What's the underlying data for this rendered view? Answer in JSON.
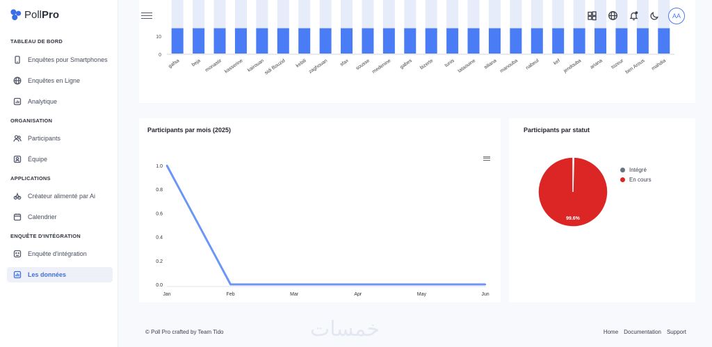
{
  "app": {
    "logo_light": "Poll",
    "logo_bold": "Pro"
  },
  "sidebar": {
    "sections": [
      {
        "title": "TABLEAU DE BORD"
      },
      {
        "title": "ORGANISATION"
      },
      {
        "title": "APPLICATIONS"
      },
      {
        "title": "ENQUÊTE D'INTÉGRATION"
      }
    ],
    "items": [
      {
        "label": "Enquêtes pour Smartphones",
        "icon": "smartphone-icon"
      },
      {
        "label": "Enquêtes en Ligne",
        "icon": "globe-icon"
      },
      {
        "label": "Analytique",
        "icon": "analytics-icon"
      },
      {
        "label": "Participants",
        "icon": "users-icon"
      },
      {
        "label": "Équipe",
        "icon": "team-icon"
      },
      {
        "label": "Créateur alimenté par Ai",
        "icon": "ai-icon"
      },
      {
        "label": "Calendrier",
        "icon": "calendar-icon"
      },
      {
        "label": "Enquête d'intégration",
        "icon": "survey-icon"
      },
      {
        "label": "Les données",
        "icon": "data-icon",
        "active": true
      }
    ]
  },
  "header": {
    "avatar": "AA",
    "icons": [
      "windows-icon",
      "globe-icon",
      "bell-icon",
      "moon-icon"
    ]
  },
  "chart_data": [
    {
      "type": "bar",
      "categories": [
        "gafsa",
        "beja",
        "monastir",
        "kasserine",
        "kairouan",
        "sidi Bouzid",
        "kebili",
        "zaghouan",
        "sfax",
        "sousse",
        "medenine",
        "gabes",
        "bizerte",
        "tunis",
        "tataouine",
        "siliana",
        "manouba",
        "nabeul",
        "kef",
        "jendouba",
        "ariana",
        "tozeur",
        "ben Arous",
        "mahdia"
      ],
      "values": [
        14,
        14,
        14,
        14,
        14,
        14,
        14,
        14,
        14,
        14,
        14,
        14,
        14,
        14,
        14,
        14,
        14,
        14,
        14,
        14,
        14,
        14,
        14,
        14
      ],
      "ytick_labels": [
        "0",
        "10"
      ],
      "color": "#4a7cf5"
    },
    {
      "type": "line",
      "title": "Participants par mois (2025)",
      "categories": [
        "Jan",
        "Feb",
        "Mar",
        "Apr",
        "May",
        "Jun"
      ],
      "values": [
        1.0,
        0.0,
        0.0,
        0.0,
        0.0,
        0.0
      ],
      "ylim": [
        0,
        1.0
      ],
      "ytick_labels": [
        "0.0",
        "0.2",
        "0.4",
        "0.6",
        "0.8",
        "1.0"
      ],
      "color": "#6b96f7"
    },
    {
      "type": "pie",
      "title": "Participants par statut",
      "labels": [
        "Intégré",
        "En cours"
      ],
      "values": [
        0.4,
        99.6
      ],
      "data_label": "99.6%",
      "colors": [
        "#6b7280",
        "#dc2626"
      ]
    }
  ],
  "footer": {
    "credit": "© Poll Pro crafted by Team Tido",
    "links": [
      "Home",
      "Documentation",
      "Support"
    ],
    "watermark": "خمسات"
  }
}
